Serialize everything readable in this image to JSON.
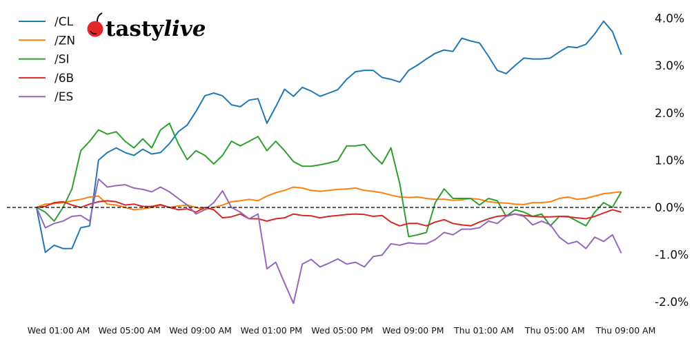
{
  "logo": {
    "text": "tastylive",
    "part1": "tasty",
    "part2": "live",
    "cherry_color": "#e3262b"
  },
  "chart_data": {
    "type": "line",
    "title": "",
    "xlabel": "",
    "ylabel": "",
    "y_unit": "%",
    "ylim": [
      -2.3,
      4.2
    ],
    "y_axis_side": "right",
    "grid": false,
    "legend_placement": "top-left",
    "reference_line": {
      "y": 0.0,
      "style": "dashed",
      "color": "#000000"
    },
    "y_ticks": [
      "4.0%",
      "3.0%",
      "2.0%",
      "1.0%",
      "0.0%",
      "-1.0%",
      "-2.0%"
    ],
    "y_tick_values": [
      4,
      3,
      2,
      1,
      0,
      -1,
      -2
    ],
    "x_ticks": [
      "Wed 01:00 AM",
      "Wed 05:00 AM",
      "Wed 09:00 AM",
      "Wed 01:00 PM",
      "Wed 05:00 PM",
      "Wed 09:00 PM",
      "Thu 01:00 AM",
      "Thu 05:00 AM",
      "Thu 09:00 AM"
    ],
    "x": [
      "Tue 11:45 PM",
      "Wed 12:15 AM",
      "Wed 12:45 AM",
      "Wed 01:15 AM",
      "Wed 01:45 AM",
      "Wed 02:15 AM",
      "Wed 02:45 AM",
      "Wed 03:15 AM",
      "Wed 03:45 AM",
      "Wed 04:15 AM",
      "Wed 04:45 AM",
      "Wed 05:15 AM",
      "Wed 05:45 AM",
      "Wed 06:15 AM",
      "Wed 06:45 AM",
      "Wed 07:15 AM",
      "Wed 07:45 AM",
      "Wed 08:15 AM",
      "Wed 08:45 AM",
      "Wed 09:15 AM",
      "Wed 09:45 AM",
      "Wed 10:15 AM",
      "Wed 10:45 AM",
      "Wed 11:15 AM",
      "Wed 11:45 AM",
      "Wed 12:15 PM",
      "Wed 12:45 PM",
      "Wed 01:15 PM",
      "Wed 01:45 PM",
      "Wed 02:15 PM",
      "Wed 02:45 PM",
      "Wed 03:15 PM",
      "Wed 03:45 PM",
      "Wed 04:15 PM",
      "Wed 04:45 PM",
      "Wed 05:15 PM",
      "Wed 05:45 PM",
      "Wed 06:15 PM",
      "Wed 06:45 PM",
      "Wed 07:15 PM",
      "Wed 07:45 PM",
      "Wed 08:15 PM",
      "Wed 08:45 PM",
      "Wed 09:15 PM",
      "Wed 09:45 PM",
      "Wed 10:15 PM",
      "Wed 10:45 PM",
      "Wed 11:15 PM",
      "Wed 11:45 PM",
      "Thu 12:15 AM",
      "Thu 12:45 AM",
      "Thu 01:15 AM",
      "Thu 01:45 AM",
      "Thu 02:15 AM",
      "Thu 02:45 AM",
      "Thu 03:15 AM",
      "Thu 03:45 AM",
      "Thu 04:15 AM",
      "Thu 04:45 AM",
      "Thu 05:15 AM",
      "Thu 05:45 AM",
      "Thu 06:15 AM",
      "Thu 06:45 AM",
      "Thu 07:15 AM",
      "Thu 07:45 AM",
      "Thu 08:15 AM",
      "Thu 08:45 AM"
    ],
    "series": [
      {
        "name": "/CL",
        "color": "#1f77b4",
        "values": [
          0,
          -0.95,
          -0.8,
          -0.87,
          -0.87,
          -0.43,
          -0.39,
          1.0,
          1.16,
          1.26,
          1.16,
          1.1,
          1.23,
          1.13,
          1.16,
          1.35,
          1.6,
          1.74,
          2.03,
          2.36,
          2.42,
          2.36,
          2.17,
          2.13,
          2.27,
          2.3,
          1.78,
          2.13,
          2.5,
          2.35,
          2.54,
          2.46,
          2.35,
          2.42,
          2.49,
          2.71,
          2.87,
          2.9,
          2.9,
          2.75,
          2.71,
          2.65,
          2.9,
          3.01,
          3.14,
          3.26,
          3.33,
          3.3,
          3.58,
          3.52,
          3.48,
          3.2,
          2.9,
          2.83,
          3.0,
          3.16,
          3.14,
          3.14,
          3.16,
          3.29,
          3.4,
          3.38,
          3.45,
          3.67,
          3.94,
          3.72,
          3.23
        ]
      },
      {
        "name": "/ZN",
        "color": "#ff7f0e",
        "values": [
          0,
          0.07,
          0.08,
          0.1,
          0.14,
          0.17,
          0.22,
          0.24,
          0.07,
          0.05,
          0,
          -0.05,
          -0.03,
          0,
          0.05,
          0,
          0.03,
          0.05,
          0,
          -0.05,
          0,
          0.05,
          0.12,
          0.14,
          0.17,
          0.14,
          0.24,
          0.31,
          0.36,
          0.43,
          0.41,
          0.36,
          0.34,
          0.36,
          0.38,
          0.39,
          0.41,
          0.36,
          0.34,
          0.31,
          0.26,
          0.22,
          0.21,
          0.22,
          0.19,
          0.17,
          0.17,
          0.15,
          0.16,
          0.19,
          0.17,
          0.12,
          0.1,
          0.09,
          0.07,
          0.06,
          0.1,
          0.1,
          0.12,
          0.19,
          0.22,
          0.17,
          0.19,
          0.24,
          0.29,
          0.31,
          0.33
        ]
      },
      {
        "name": "/SI",
        "color": "#2ca02c",
        "values": [
          0,
          -0.1,
          -0.29,
          0,
          0.39,
          1.2,
          1.4,
          1.64,
          1.55,
          1.6,
          1.4,
          1.26,
          1.45,
          1.26,
          1.64,
          1.78,
          1.35,
          1.01,
          1.2,
          1.1,
          0.92,
          1.1,
          1.4,
          1.3,
          1.4,
          1.5,
          1.2,
          1.4,
          1.2,
          0.97,
          0.87,
          0.87,
          0.9,
          0.94,
          0.99,
          1.3,
          1.3,
          1.33,
          1.1,
          0.92,
          1.26,
          0.5,
          -0.62,
          -0.58,
          -0.53,
          0.1,
          0.39,
          0.19,
          0.19,
          0.19,
          0.05,
          0.19,
          0.14,
          -0.19,
          -0.05,
          -0.1,
          -0.19,
          -0.14,
          -0.39,
          -0.19,
          -0.19,
          -0.29,
          -0.39,
          -0.1,
          0.1,
          0,
          0.33
        ]
      },
      {
        "name": "/6B",
        "color": "#d62728",
        "values": [
          0,
          0.02,
          0.1,
          0.12,
          0.05,
          0,
          0.07,
          0.12,
          0.14,
          0.12,
          0.05,
          0.07,
          0.02,
          0.02,
          0.06,
          0,
          -0.05,
          -0.03,
          -0.1,
          0,
          -0.05,
          -0.22,
          -0.2,
          -0.14,
          -0.24,
          -0.24,
          -0.29,
          -0.24,
          -0.22,
          -0.14,
          -0.17,
          -0.18,
          -0.22,
          -0.19,
          -0.17,
          -0.15,
          -0.14,
          -0.15,
          -0.19,
          -0.17,
          -0.31,
          -0.39,
          -0.34,
          -0.34,
          -0.39,
          -0.31,
          -0.26,
          -0.34,
          -0.37,
          -0.39,
          -0.31,
          -0.24,
          -0.19,
          -0.17,
          -0.14,
          -0.17,
          -0.19,
          -0.2,
          -0.2,
          -0.19,
          -0.2,
          -0.22,
          -0.24,
          -0.19,
          -0.12,
          -0.05,
          -0.1
        ]
      },
      {
        "name": "/ES",
        "color": "#9467bd",
        "values": [
          0,
          -0.43,
          -0.34,
          -0.29,
          -0.19,
          -0.17,
          -0.29,
          0.6,
          0.43,
          0.46,
          0.48,
          0.41,
          0.38,
          0.33,
          0.43,
          0.33,
          0.19,
          0.05,
          -0.14,
          -0.05,
          0.1,
          0.35,
          0,
          -0.1,
          -0.24,
          -0.14,
          -1.3,
          -1.16,
          -1.6,
          -2.03,
          -1.2,
          -1.1,
          -1.26,
          -1.18,
          -1.09,
          -1.2,
          -1.16,
          -1.26,
          -1.04,
          -1.01,
          -0.77,
          -0.8,
          -0.75,
          -0.77,
          -0.77,
          -0.68,
          -0.53,
          -0.58,
          -0.46,
          -0.46,
          -0.43,
          -0.29,
          -0.34,
          -0.19,
          -0.14,
          -0.19,
          -0.37,
          -0.29,
          -0.37,
          -0.63,
          -0.77,
          -0.72,
          -0.87,
          -0.63,
          -0.72,
          -0.58,
          -0.97
        ]
      }
    ]
  }
}
